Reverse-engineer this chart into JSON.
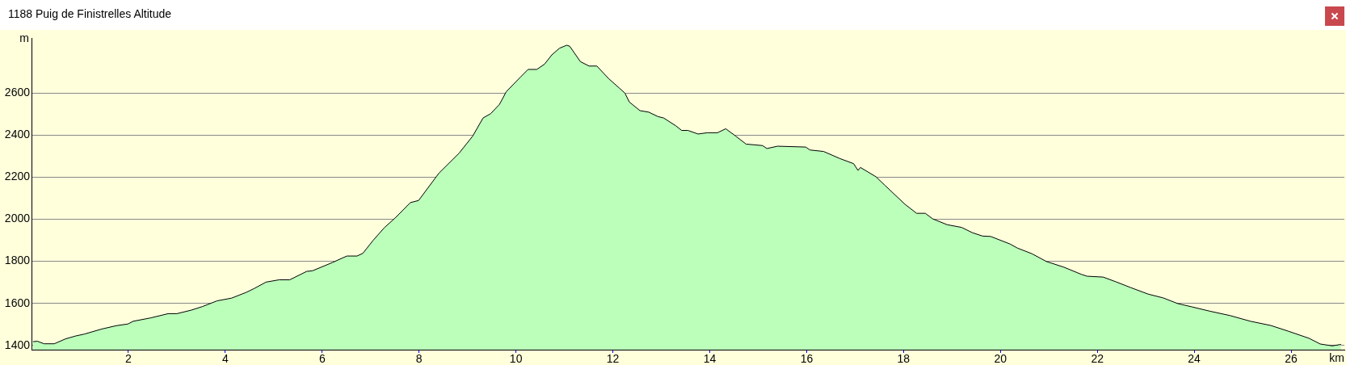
{
  "chart_data": {
    "type": "area",
    "title": "1188 Puig de Finistrelles Altitude",
    "xlabel": "km",
    "ylabel": "m",
    "color": "#bbffbb",
    "x": [
      0.03,
      0.12,
      0.26,
      0.47,
      0.7,
      0.91,
      1.09,
      1.45,
      1.75,
      1.99,
      2.1,
      2.46,
      2.82,
      3.0,
      3.3,
      3.53,
      3.83,
      4.13,
      4.43,
      4.6,
      4.84,
      5.11,
      5.33,
      5.68,
      5.8,
      6.21,
      6.51,
      6.72,
      6.84,
      7.05,
      7.28,
      7.52,
      7.82,
      7.99,
      8.41,
      8.83,
      9.11,
      9.32,
      9.48,
      9.66,
      9.8,
      10.09,
      10.25,
      10.43,
      10.59,
      10.74,
      10.9,
      11.05,
      11.11,
      11.33,
      11.51,
      11.67,
      11.91,
      12.13,
      12.25,
      12.34,
      12.56,
      12.74,
      12.93,
      13.05,
      13.3,
      13.42,
      13.55,
      13.76,
      13.95,
      14.16,
      14.33,
      14.53,
      14.75,
      15.09,
      15.18,
      15.4,
      15.98,
      16.07,
      16.35,
      16.69,
      16.97,
      17.06,
      17.11,
      17.43,
      17.62,
      18.03,
      18.27,
      18.45,
      18.6,
      18.9,
      19.2,
      19.42,
      19.63,
      19.8,
      20.2,
      20.35,
      20.65,
      20.95,
      21.31,
      21.67,
      21.79,
      22.12,
      22.39,
      22.69,
      23.05,
      23.36,
      23.66,
      23.96,
      24.32,
      24.74,
      25.16,
      25.58,
      25.94,
      26.37,
      26.6,
      26.85,
      27.03
    ],
    "values": [
      1418,
      1420,
      1408,
      1408,
      1431,
      1445,
      1454,
      1478,
      1494,
      1502,
      1515,
      1531,
      1551,
      1551,
      1568,
      1585,
      1612,
      1625,
      1652,
      1671,
      1701,
      1712,
      1712,
      1752,
      1755,
      1794,
      1825,
      1825,
      1838,
      1899,
      1959,
      2009,
      2079,
      2089,
      2219,
      2315,
      2396,
      2481,
      2502,
      2546,
      2606,
      2675,
      2712,
      2712,
      2737,
      2781,
      2813,
      2827,
      2822,
      2749,
      2728,
      2728,
      2669,
      2624,
      2599,
      2557,
      2516,
      2509,
      2488,
      2481,
      2444,
      2422,
      2422,
      2405,
      2411,
      2411,
      2430,
      2396,
      2357,
      2350,
      2336,
      2347,
      2343,
      2329,
      2322,
      2288,
      2264,
      2232,
      2246,
      2202,
      2160,
      2071,
      2028,
      2028,
      2002,
      1974,
      1961,
      1936,
      1920,
      1918,
      1882,
      1863,
      1836,
      1799,
      1772,
      1738,
      1729,
      1725,
      1702,
      1675,
      1644,
      1626,
      1599,
      1583,
      1563,
      1542,
      1515,
      1495,
      1468,
      1434,
      1407,
      1398,
      1405
    ],
    "xlim": [
      0,
      27.1
    ],
    "xticks": [
      2,
      4,
      6,
      8,
      10,
      12,
      14,
      16,
      18,
      20,
      22,
      24,
      26
    ],
    "ylim": [
      1380,
      2860
    ],
    "yticks": [
      1400,
      1600,
      1800,
      2000,
      2200,
      2400,
      2600
    ],
    "grid": "y",
    "legend": false
  }
}
